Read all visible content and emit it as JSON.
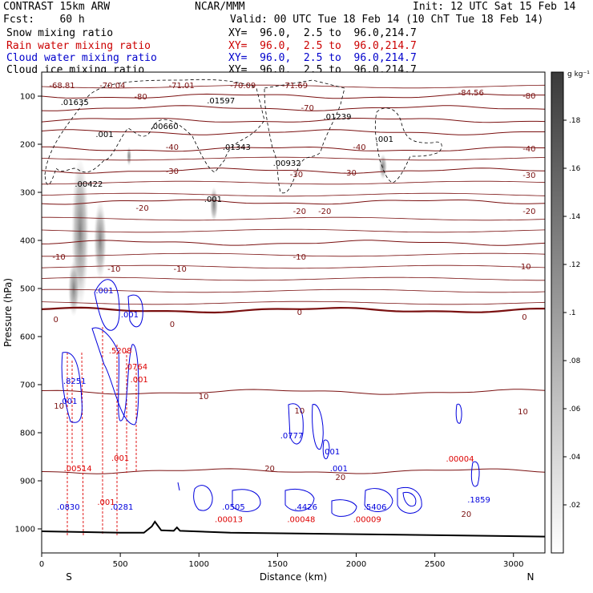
{
  "header": {
    "model": "CONTRAST 15km ARW",
    "org": "NCAR/MMM",
    "init": "Init: 12 UTC Sat 15 Feb 14",
    "fcst": "Fcst:    60 h",
    "valid": "Valid: 00 UTC Tue 18 Feb 14 (10 ChT Tue 18 Feb 14)"
  },
  "fields": [
    {
      "name": "Snow mixing ratio",
      "xy": "XY=  96.0,  2.5 to  96.0,214.7",
      "color": "#000000"
    },
    {
      "name": "Rain water mixing ratio",
      "xy": "XY=  96.0,  2.5 to  96.0,214.7",
      "color": "#cc0000"
    },
    {
      "name": "Cloud water mixing ratio",
      "xy": "XY=  96.0,  2.5 to  96.0,214.7",
      "color": "#0000cc"
    },
    {
      "name": "Cloud ice mixing ratio",
      "xy": "XY=  96.0,  2.5 to  96.0,214.7",
      "color": "#000000"
    }
  ],
  "chart_data": {
    "type": "cross-section",
    "xlabel": "Distance (km)",
    "ylabel": "Pressure (hPa)",
    "xlim": [
      0,
      3200
    ],
    "ylim": [
      1050,
      50
    ],
    "x_ticks": [
      0,
      500,
      1000,
      1500,
      2000,
      2500,
      3000
    ],
    "y_ticks": [
      100,
      200,
      300,
      400,
      500,
      600,
      700,
      800,
      900,
      1000
    ],
    "x_end_labels": {
      "left": "S",
      "right": "N"
    },
    "colorbar": {
      "units": "g kg⁻¹",
      "ticks": [
        ".02",
        ".04",
        ".06",
        ".08",
        ".1",
        ".12",
        ".14",
        ".16",
        ".18"
      ]
    },
    "temperature_contours": [
      {
        "value": -80,
        "p": 100
      },
      {
        "value": -70,
        "p": 125
      },
      {
        "value": -60,
        "p": 150
      },
      {
        "value": -50,
        "p": 175
      },
      {
        "value": -40,
        "p": 210
      },
      {
        "value": -30,
        "p": 255
      },
      {
        "value": -20,
        "p": 320
      },
      {
        "value": -10,
        "p": 405
      },
      {
        "value": 0,
        "p": 545
      },
      {
        "value": 10,
        "p": 715
      },
      {
        "value": 20,
        "p": 880
      }
    ],
    "temperature_labels": [
      {
        "text": "-80",
        "x": 630,
        "p": 107
      },
      {
        "text": "-80",
        "x": 3100,
        "p": 105
      },
      {
        "text": "-70",
        "x": 1690,
        "p": 130
      },
      {
        "text": "-40",
        "x": 830,
        "p": 212
      },
      {
        "text": "-40",
        "x": 2020,
        "p": 212
      },
      {
        "text": "-40",
        "x": 3100,
        "p": 215
      },
      {
        "text": "-30",
        "x": 830,
        "p": 262
      },
      {
        "text": "-30",
        "x": 1620,
        "p": 268
      },
      {
        "text": "-30",
        "x": 1960,
        "p": 265
      },
      {
        "text": "-30",
        "x": 3100,
        "p": 270
      },
      {
        "text": "-20",
        "x": 640,
        "p": 338
      },
      {
        "text": "-20",
        "x": 1640,
        "p": 345
      },
      {
        "text": "-20",
        "x": 1800,
        "p": 345
      },
      {
        "text": "-20",
        "x": 3100,
        "p": 345
      },
      {
        "text": "-10",
        "x": 110,
        "p": 440
      },
      {
        "text": "-10",
        "x": 460,
        "p": 465
      },
      {
        "text": "-10",
        "x": 880,
        "p": 465
      },
      {
        "text": "-10",
        "x": 1640,
        "p": 440
      },
      {
        "text": "-10",
        "x": 3070,
        "p": 460
      },
      {
        "text": "0",
        "x": 90,
        "p": 570
      },
      {
        "text": "0",
        "x": 830,
        "p": 580
      },
      {
        "text": "0",
        "x": 1640,
        "p": 555
      },
      {
        "text": "0",
        "x": 3070,
        "p": 565
      },
      {
        "text": "10",
        "x": 110,
        "p": 750
      },
      {
        "text": "10",
        "x": 1030,
        "p": 730
      },
      {
        "text": "10",
        "x": 1640,
        "p": 760
      },
      {
        "text": "10",
        "x": 3060,
        "p": 762
      },
      {
        "text": "20",
        "x": 1450,
        "p": 880
      },
      {
        "text": "20",
        "x": 1900,
        "p": 898
      },
      {
        "text": "20",
        "x": 2700,
        "p": 975
      }
    ],
    "min_temp_labels": [
      {
        "text": "-68.81",
        "x": 130,
        "p": 83
      },
      {
        "text": "-70.04",
        "x": 450,
        "p": 83
      },
      {
        "text": "-71.01",
        "x": 890,
        "p": 83
      },
      {
        "text": "-70.09",
        "x": 1280,
        "p": 83
      },
      {
        "text": "-71.69",
        "x": 1610,
        "p": 83
      },
      {
        "text": "-84.56",
        "x": 2730,
        "p": 98
      }
    ],
    "snow_max_labels": [
      {
        "text": ".01635",
        "x": 210,
        "p": 118
      },
      {
        "text": ".00660",
        "x": 780,
        "p": 168
      },
      {
        "text": ".01597",
        "x": 1140,
        "p": 115
      },
      {
        "text": ".01343",
        "x": 1240,
        "p": 212
      },
      {
        "text": ".00932",
        "x": 1560,
        "p": 245
      },
      {
        "text": ".01239",
        "x": 1880,
        "p": 148
      },
      {
        "text": ".00422",
        "x": 300,
        "p": 288
      },
      {
        "text": ".001",
        "x": 400,
        "p": 185
      },
      {
        "text": ".001",
        "x": 1090,
        "p": 320
      },
      {
        "text": ".001",
        "x": 2180,
        "p": 195
      }
    ],
    "rain_max_labels": [
      {
        "text": ".5208",
        "x": 500,
        "p": 635
      },
      {
        "text": ".0764",
        "x": 600,
        "p": 668
      },
      {
        "text": ".001",
        "x": 620,
        "p": 695
      },
      {
        "text": ".001",
        "x": 500,
        "p": 858
      },
      {
        "text": ".001",
        "x": 410,
        "p": 950
      },
      {
        "text": ".00514",
        "x": 230,
        "p": 880
      },
      {
        "text": ".00013",
        "x": 1190,
        "p": 986
      },
      {
        "text": ".00048",
        "x": 1650,
        "p": 986
      },
      {
        "text": ".00009",
        "x": 2070,
        "p": 986
      },
      {
        "text": ".00004",
        "x": 2660,
        "p": 860
      }
    ],
    "cloud_max_labels": [
      {
        "text": ".8251",
        "x": 210,
        "p": 698
      },
      {
        "text": ".001",
        "x": 400,
        "p": 510
      },
      {
        "text": ".001",
        "x": 560,
        "p": 560
      },
      {
        "text": ".001",
        "x": 170,
        "p": 740
      },
      {
        "text": ".0777",
        "x": 1590,
        "p": 812
      },
      {
        "text": ".001",
        "x": 1840,
        "p": 845
      },
      {
        "text": ".001",
        "x": 1890,
        "p": 880
      },
      {
        "text": ".0830",
        "x": 170,
        "p": 960
      },
      {
        "text": ".0281",
        "x": 510,
        "p": 960
      },
      {
        "text": ".0505",
        "x": 1220,
        "p": 960
      },
      {
        "text": ".4426",
        "x": 1680,
        "p": 960
      },
      {
        "text": ".5406",
        "x": 2120,
        "p": 960
      },
      {
        "text": ".1859",
        "x": 2780,
        "p": 945
      }
    ],
    "surface": [
      [
        0,
        1005
      ],
      [
        500,
        1008
      ],
      [
        650,
        1008
      ],
      [
        700,
        995
      ],
      [
        720,
        985
      ],
      [
        760,
        1003
      ],
      [
        840,
        1004
      ],
      [
        860,
        997
      ],
      [
        880,
        1004
      ],
      [
        1200,
        1008
      ],
      [
        2000,
        1011
      ],
      [
        3200,
        1016
      ]
    ]
  }
}
